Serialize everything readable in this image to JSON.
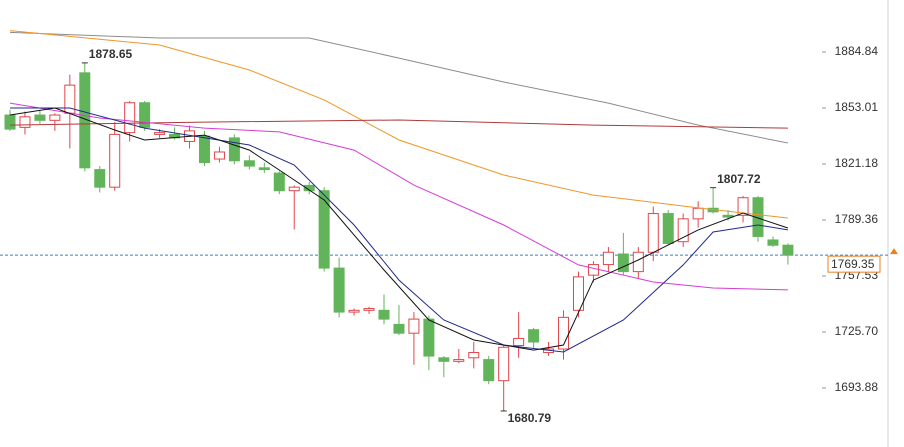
{
  "chart_data": {
    "type": "candlestick",
    "open": [
      1849,
      1842,
      1849,
      1846,
      1850,
      1873,
      1818,
      1808,
      1839,
      1856,
      1838,
      1838,
      1834,
      1837,
      1824,
      1836,
      1823,
      1819,
      1816,
      1806,
      1809,
      1806,
      1762,
      1737,
      1738,
      1738,
      1730,
      1725,
      1733,
      1711,
      1709,
      1711,
      1710,
      1698,
      1718,
      1727,
      1714,
      1716,
      1738,
      1758,
      1764,
      1770,
      1760,
      1771,
      1793,
      1777,
      1790,
      1796,
      1792,
      1792,
      1802,
      1778,
      1775
    ],
    "high": [
      1852,
      1851,
      1852,
      1850,
      1872,
      1878.65,
      1820,
      1845,
      1857,
      1857,
      1841,
      1842,
      1843,
      1840,
      1831,
      1838,
      1826,
      1822,
      1817,
      1809,
      1811,
      1808,
      1768,
      1739,
      1740,
      1747,
      1741,
      1737,
      1735,
      1712,
      1716,
      1720,
      1712,
      1718,
      1737,
      1728,
      1720,
      1738,
      1760,
      1766,
      1774,
      1782,
      1774,
      1797,
      1795,
      1793,
      1800,
      1807.72,
      1795,
      1803,
      1803,
      1780,
      1776
    ],
    "low": [
      1840,
      1838,
      1844,
      1840,
      1830,
      1817,
      1805,
      1806,
      1834,
      1840,
      1836,
      1835,
      1830,
      1820,
      1822,
      1821,
      1818,
      1816,
      1804,
      1784,
      1804,
      1760,
      1734,
      1735,
      1736,
      1730,
      1724,
      1707,
      1704,
      1700,
      1708,
      1705,
      1696,
      1680.79,
      1711,
      1716,
      1712,
      1710,
      1734,
      1754,
      1760,
      1758,
      1756,
      1766,
      1775,
      1774,
      1785,
      1793,
      1789,
      1788,
      1777,
      1774,
      1764
    ],
    "close": [
      1841,
      1848,
      1846,
      1849,
      1866,
      1819,
      1808,
      1838,
      1856,
      1842,
      1839,
      1836,
      1840,
      1822,
      1828,
      1823,
      1820,
      1818,
      1806,
      1808,
      1806,
      1762,
      1737,
      1738,
      1739,
      1733,
      1725,
      1733,
      1712,
      1709,
      1710,
      1714,
      1698,
      1717,
      1722,
      1720,
      1716,
      1734,
      1757,
      1764,
      1771,
      1760,
      1771,
      1793,
      1776,
      1790,
      1796,
      1794,
      1791,
      1802,
      1780,
      1775,
      1769.35
    ],
    "up_color": "#e0464b",
    "down_color": "#62b45a",
    "series": [
      {
        "color": "#8c8c8c",
        "x": [
          0,
          10,
          20,
          26,
          33,
          40,
          46,
          52
        ],
        "values": [
          1896,
          1892.8,
          1892.8,
          1881.4,
          1867.8,
          1855.8,
          1843.3,
          1833.1
        ]
      },
      {
        "color": "#f0962a",
        "x": [
          0,
          10,
          16,
          21,
          26,
          33,
          39,
          46,
          52
        ],
        "values": [
          1897,
          1888.8,
          1874.6,
          1857.6,
          1834.8,
          1814.9,
          1803.5,
          1796.2,
          1790.5
        ]
      },
      {
        "color": "#b03a3a",
        "x": [
          0,
          13,
          26,
          39,
          52
        ],
        "values": [
          1843.3,
          1845,
          1846.2,
          1843.3,
          1841.6
        ]
      },
      {
        "color": "#d63cd6",
        "x": [
          0,
          6,
          13,
          18,
          23,
          27,
          33,
          38,
          43,
          47,
          52
        ],
        "values": [
          1855.8,
          1847.3,
          1841.6,
          1839.4,
          1829.1,
          1809.2,
          1786.5,
          1763.8,
          1754.1,
          1750.7,
          1749.6
        ]
      },
      {
        "color": "#1f2a8c",
        "x": [
          0,
          4,
          9,
          16,
          19,
          23,
          26,
          29,
          33,
          37,
          41,
          45,
          47,
          50,
          52
        ],
        "values": [
          1853,
          1853,
          1841.6,
          1832,
          1820.6,
          1786.5,
          1755.2,
          1732.5,
          1718.3,
          1714.3,
          1732.5,
          1763.8,
          1782.5,
          1786.5,
          1783.7
        ]
      },
      {
        "color": "#111111",
        "x": [
          0,
          3,
          7,
          9,
          13,
          16,
          19,
          21,
          25,
          28,
          31,
          35,
          37,
          39,
          42,
          46,
          49,
          52
        ],
        "values": [
          1849,
          1853,
          1840.5,
          1834.8,
          1837.6,
          1829.1,
          1812.1,
          1800.7,
          1760.9,
          1732.5,
          1721.1,
          1715.4,
          1718.3,
          1755.2,
          1766.6,
          1783.7,
          1793.3,
          1784.8
        ]
      }
    ],
    "annotations": [
      {
        "x": 5,
        "value": 1878.65,
        "color": "#d64541"
      },
      {
        "x": 47,
        "value": 1807.72,
        "color": "#d64541"
      },
      {
        "x": 33,
        "value": 1680.79,
        "color": "#4f9f46"
      }
    ],
    "last_price": 1769.35,
    "last_price_color": "#e8801e",
    "ylim": [
      1660.3,
      1914.4
    ],
    "yticks": [
      1884.84,
      1853.01,
      1821.18,
      1789.36,
      1757.53,
      {
        "value": 1725.7,
        "label": "1725.70"
      },
      1693.88
    ]
  }
}
